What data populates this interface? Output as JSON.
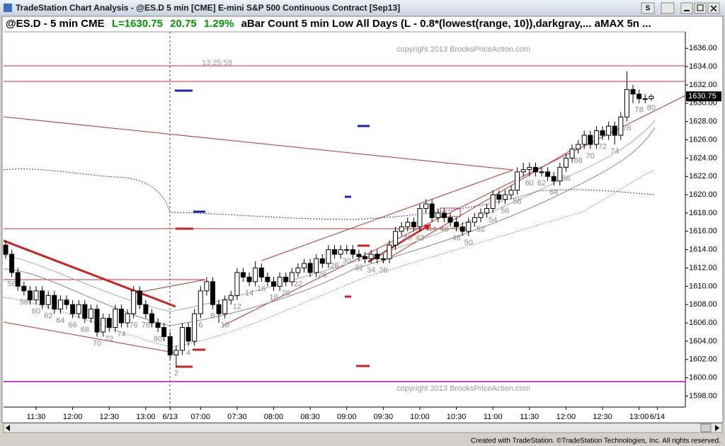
{
  "window_title": "TradeStation Chart Analysis - @ES.D 5 min [CME] E-mini S&P 500 Continuous Contract [Sep13]",
  "window_button": "S",
  "footer": "Created with TradeStation. ©TradeStation Technologies, Inc. All rights reserved.",
  "chart_data": {
    "type": "candlestick",
    "symbol": "@ES.D - 5 min  CME",
    "last_text": "L=1630.75",
    "change": "20.75",
    "change_pct": "1.29%",
    "study": "aBar Count 5 min Low All Days (L - 0.8*(lowest(range, 10)),darkgray,...  aMAX 5n ...",
    "timestamp": "13:25:59",
    "copyright": "copyright 2013 BrooksPriceAction.com",
    "last_price": 1630.75,
    "open": [
      1614.5,
      1613.5,
      1611.5,
      1610,
      1609.5,
      1608.5,
      1609.5,
      1608,
      1609,
      1607.5,
      1608.5,
      1608,
      1607,
      1608,
      1606.5,
      1607.5,
      1605,
      1606.5,
      1605.5,
      1607.5,
      1606,
      1607,
      1609.5,
      1608,
      1607,
      1606,
      1605.5,
      1604.5,
      1602.5,
      1603,
      1605.5,
      1604,
      1607,
      1609.5,
      1610.5,
      1608,
      1607,
      1608.5,
      1609,
      1611.5,
      1611,
      1610.5,
      1612,
      1611,
      1610.5,
      1610,
      1611,
      1610.5,
      1611.5,
      1612,
      1612.5,
      1611.5,
      1613,
      1612.5,
      1614,
      1613.5,
      1614,
      1614,
      1613.5,
      1613.25,
      1613,
      1613.5,
      1613,
      1613,
      1614.5,
      1616,
      1616.5,
      1617,
      1616.5,
      1618.5,
      1619,
      1617.5,
      1618,
      1617.5,
      1617,
      1616.5,
      1616,
      1617,
      1617.5,
      1618,
      1618.5,
      1620,
      1619.5,
      1620,
      1620.5,
      1622.5,
      1622.75,
      1623,
      1622.5,
      1622.5,
      1622,
      1621.5,
      1623,
      1624,
      1625,
      1625.5,
      1626.5,
      1625.5,
      1627,
      1626.5,
      1627.5,
      1626.5,
      1628.5,
      1631.5,
      1631,
      1630.5,
      1630.5
    ],
    "high": [
      1615,
      1614,
      1612,
      1610.5,
      1610,
      1610,
      1610,
      1609.5,
      1609.5,
      1609,
      1609,
      1608.5,
      1608.5,
      1608.5,
      1608,
      1608,
      1607,
      1607,
      1608,
      1608,
      1607.5,
      1610,
      1610,
      1608.5,
      1607.5,
      1606.5,
      1606,
      1605,
      1603.5,
      1606,
      1606,
      1607.5,
      1610,
      1611,
      1611,
      1608.5,
      1609,
      1609.5,
      1612,
      1612,
      1611.5,
      1612.75,
      1612.5,
      1611.5,
      1611,
      1611.5,
      1611.5,
      1612,
      1612.5,
      1613,
      1613,
      1613.5,
      1613.5,
      1614.5,
      1614.5,
      1614.5,
      1614.5,
      1614.5,
      1614,
      1613.75,
      1614,
      1614,
      1613.5,
      1615,
      1616.5,
      1617,
      1617.5,
      1617.5,
      1619,
      1619.5,
      1619.5,
      1618.5,
      1618.5,
      1618,
      1617.5,
      1617,
      1617.5,
      1618,
      1618.5,
      1619,
      1620.5,
      1620.5,
      1620.5,
      1621,
      1623,
      1623.5,
      1623.5,
      1623.5,
      1623,
      1623,
      1622.5,
      1623.5,
      1624.5,
      1625.5,
      1626,
      1627,
      1627,
      1627.5,
      1627.5,
      1628,
      1628,
      1629,
      1633.5,
      1632,
      1631.5,
      1631,
      1631
    ],
    "low": [
      1613,
      1611,
      1609.5,
      1609,
      1608,
      1608,
      1607.5,
      1607.5,
      1607,
      1607,
      1607.5,
      1606.5,
      1606.5,
      1606,
      1606,
      1604.5,
      1604.5,
      1605,
      1605,
      1605.5,
      1605.5,
      1606.5,
      1607.5,
      1606.5,
      1605.5,
      1605,
      1604,
      1602,
      1601.25,
      1602.5,
      1603.5,
      1603.5,
      1606.5,
      1609,
      1607.5,
      1606,
      1606.5,
      1608,
      1608.5,
      1610.5,
      1610,
      1610,
      1610.5,
      1610,
      1609.5,
      1609.5,
      1610,
      1610,
      1611,
      1611.5,
      1611,
      1611,
      1612,
      1612,
      1613,
      1613,
      1613.5,
      1613,
      1612.75,
      1612.5,
      1612.5,
      1612.5,
      1612.5,
      1612.5,
      1614,
      1615.5,
      1616,
      1616,
      1616,
      1618,
      1617,
      1617,
      1617,
      1616.5,
      1616,
      1615.5,
      1615.5,
      1616.5,
      1617,
      1617.5,
      1618,
      1619,
      1619,
      1619.5,
      1620,
      1622,
      1622,
      1622,
      1622,
      1621.5,
      1621,
      1621,
      1622.5,
      1623.5,
      1624.5,
      1625,
      1625,
      1625,
      1626,
      1626,
      1625.5,
      1626,
      1628,
      1630,
      1630,
      1630,
      1630.25
    ],
    "close": [
      1613.5,
      1611.5,
      1610,
      1609.5,
      1608.5,
      1609.5,
      1608,
      1609,
      1607.5,
      1608.5,
      1608,
      1607,
      1608,
      1606.5,
      1607.5,
      1605,
      1606.5,
      1605.5,
      1607.5,
      1606,
      1607,
      1609.5,
      1608,
      1607,
      1606,
      1605.5,
      1604.5,
      1602.5,
      1603,
      1605.5,
      1604,
      1607,
      1609.5,
      1610.5,
      1608,
      1607,
      1608.5,
      1609,
      1611.5,
      1611,
      1610.5,
      1612,
      1611,
      1610.5,
      1610,
      1611,
      1610.5,
      1611.5,
      1612,
      1612.5,
      1611.5,
      1613,
      1612.5,
      1614,
      1613.5,
      1614,
      1614,
      1613.5,
      1613.25,
      1613,
      1613.5,
      1613,
      1613,
      1614.5,
      1616,
      1616.5,
      1617,
      1616.5,
      1618.5,
      1619,
      1617.5,
      1618,
      1617.5,
      1617,
      1616.5,
      1616,
      1617,
      1617.5,
      1618,
      1618.5,
      1620,
      1619.5,
      1620,
      1620.5,
      1622.5,
      1622.75,
      1623,
      1622.5,
      1622.5,
      1622,
      1621.5,
      1623,
      1624,
      1625,
      1625.5,
      1626.5,
      1625.5,
      1627,
      1626.5,
      1627.5,
      1626.5,
      1628.5,
      1631.5,
      1631,
      1630.5,
      1630.5,
      1630.75
    ],
    "bar_counts": [
      {
        "bar": 1,
        "text": "56"
      },
      {
        "bar": 3,
        "text": "58"
      },
      {
        "bar": 5,
        "text": "60"
      },
      {
        "bar": 7,
        "text": "62"
      },
      {
        "bar": 9,
        "text": "64"
      },
      {
        "bar": 11,
        "text": "66"
      },
      {
        "bar": 13,
        "text": "68"
      },
      {
        "bar": 15,
        "text": "70"
      },
      {
        "bar": 17,
        "text": "72"
      },
      {
        "bar": 19,
        "text": "74"
      },
      {
        "bar": 21,
        "text": "76"
      },
      {
        "bar": 23,
        "text": "78"
      },
      {
        "bar": 25,
        "text": "80"
      },
      {
        "bar": 28,
        "text": "2"
      },
      {
        "bar": 30,
        "text": "4"
      },
      {
        "bar": 32,
        "text": "6"
      },
      {
        "bar": 34,
        "text": "8"
      },
      {
        "bar": 36,
        "text": "10"
      },
      {
        "bar": 38,
        "text": "12"
      },
      {
        "bar": 40,
        "text": "14"
      },
      {
        "bar": 42,
        "text": "16"
      },
      {
        "bar": 44,
        "text": "18"
      },
      {
        "bar": 46,
        "text": "20"
      },
      {
        "bar": 48,
        "text": "22"
      },
      {
        "bar": 52,
        "text": "26"
      },
      {
        "bar": 54,
        "text": "28"
      },
      {
        "bar": 56,
        "text": "30"
      },
      {
        "bar": 58,
        "text": "32"
      },
      {
        "bar": 60,
        "text": "34"
      },
      {
        "bar": 62,
        "text": "36"
      },
      {
        "bar": 66,
        "text": "40"
      },
      {
        "bar": 68,
        "text": "42"
      },
      {
        "bar": 70,
        "text": "44"
      },
      {
        "bar": 72,
        "text": "46"
      },
      {
        "bar": 74,
        "text": "48"
      },
      {
        "bar": 76,
        "text": "50"
      },
      {
        "bar": 78,
        "text": "52"
      },
      {
        "bar": 80,
        "text": "54"
      },
      {
        "bar": 82,
        "text": "56"
      },
      {
        "bar": 84,
        "text": "58"
      },
      {
        "bar": 86,
        "text": "60"
      },
      {
        "bar": 88,
        "text": "62"
      },
      {
        "bar": 90,
        "text": "64"
      },
      {
        "bar": 92,
        "text": "66"
      },
      {
        "bar": 94,
        "text": "68"
      },
      {
        "bar": 96,
        "text": "70"
      },
      {
        "bar": 98,
        "text": "72"
      },
      {
        "bar": 100,
        "text": "74"
      },
      {
        "bar": 102,
        "text": "76"
      },
      {
        "bar": 104,
        "text": "78"
      },
      {
        "bar": 106,
        "text": "80"
      }
    ],
    "xlim": [
      -0.35,
      111.6
    ],
    "xticks": [
      {
        "value": 5,
        "label": "11:30"
      },
      {
        "value": 11,
        "label": "12:00"
      },
      {
        "value": 17,
        "label": "12:30"
      },
      {
        "value": 23,
        "label": "13:00"
      },
      {
        "value": 27,
        "label": "6/13"
      },
      {
        "value": 32,
        "label": "07:00"
      },
      {
        "value": 38,
        "label": "07:30"
      },
      {
        "value": 44,
        "label": "08:00"
      },
      {
        "value": 50,
        "label": "08:30"
      },
      {
        "value": 56,
        "label": "09:00"
      },
      {
        "value": 62,
        "label": "09:30"
      },
      {
        "value": 68,
        "label": "10:00"
      },
      {
        "value": 74,
        "label": "10:30"
      },
      {
        "value": 80,
        "label": "11:00"
      },
      {
        "value": 86,
        "label": "11:30"
      },
      {
        "value": 92,
        "label": "12:00"
      },
      {
        "value": 98,
        "label": "12:30"
      },
      {
        "value": 104,
        "label": "13:00"
      },
      {
        "value": 107,
        "label": "6/14"
      }
    ],
    "ylim": [
      1596.8,
      1637.8
    ],
    "yticks": [
      {
        "value": 1598,
        "label": "1598.00"
      },
      {
        "value": 1600,
        "label": "1600.00"
      },
      {
        "value": 1602,
        "label": "1602.00"
      },
      {
        "value": 1604,
        "label": "1604.00"
      },
      {
        "value": 1606,
        "label": "1606.00"
      },
      {
        "value": 1608,
        "label": "1608.00"
      },
      {
        "value": 1610,
        "label": "1610.00"
      },
      {
        "value": 1612,
        "label": "1612.00"
      },
      {
        "value": 1614,
        "label": "1614.00"
      },
      {
        "value": 1616,
        "label": "1616.00"
      },
      {
        "value": 1618,
        "label": "1618.00"
      },
      {
        "value": 1620,
        "label": "1620.00"
      },
      {
        "value": 1622,
        "label": "1622.00"
      },
      {
        "value": 1624,
        "label": "1624.00"
      },
      {
        "value": 1626,
        "label": "1626.00"
      },
      {
        "value": 1628,
        "label": "1628.00"
      },
      {
        "value": 1630,
        "label": "1630.00"
      },
      {
        "value": 1632,
        "label": "1632.00"
      },
      {
        "value": 1634,
        "label": "1634.00"
      },
      {
        "value": 1636,
        "label": "1636.00"
      }
    ],
    "up_color": "#ffffff",
    "down_color": "#000000"
  }
}
